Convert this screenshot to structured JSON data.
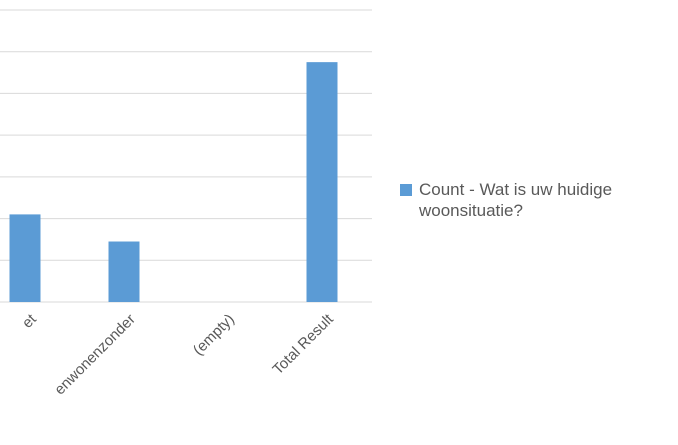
{
  "chart_data": {
    "type": "bar",
    "categories": [
      "et",
      "enwonenzonder",
      "(empty)",
      "Total Result"
    ],
    "series": [
      {
        "name": "Count - Wat is uw huidige woonsituatie?",
        "color": "#5b9bd5",
        "values": [
          2.1,
          1.45,
          null,
          5.75
        ]
      }
    ],
    "ylim": [
      0,
      7
    ],
    "yticks": [
      0,
      1,
      2,
      3,
      4,
      5,
      6,
      7
    ],
    "grid": true,
    "legend": "right"
  }
}
